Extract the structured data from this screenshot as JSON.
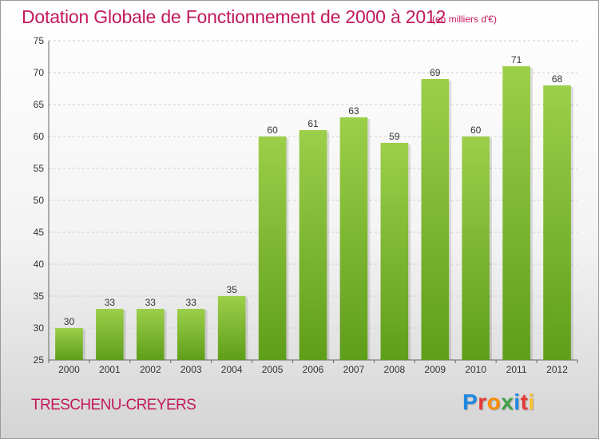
{
  "header": {
    "title": "Dotation Globale de Fonctionnement de 2000 à 2012",
    "units": "(en milliers d'€)"
  },
  "footer": {
    "commune": "TRESCHENU-CREYERS",
    "logo": "Proxiti",
    "logo_colors": [
      "#1e88e5",
      "#e53935",
      "#fb8c00",
      "#43a047",
      "#1e88e5",
      "#e53935",
      "#fbc02d"
    ]
  },
  "chart_data": {
    "type": "bar",
    "title": "Dotation Globale de Fonctionnement de 2000 à 2012",
    "subtitle": "(en milliers d'€)",
    "categories": [
      "2000",
      "2001",
      "2002",
      "2003",
      "2004",
      "2005",
      "2006",
      "2007",
      "2008",
      "2009",
      "2010",
      "2011",
      "2012"
    ],
    "values": [
      30,
      33,
      33,
      33,
      35,
      60,
      61,
      63,
      59,
      69,
      60,
      71,
      68
    ],
    "ylim": [
      25,
      75
    ],
    "yticks": [
      25,
      30,
      35,
      40,
      45,
      50,
      55,
      60,
      65,
      70,
      75
    ],
    "grid": true,
    "bar_color_top": "#9ccf4a",
    "bar_color_bottom": "#5f9e1a"
  }
}
